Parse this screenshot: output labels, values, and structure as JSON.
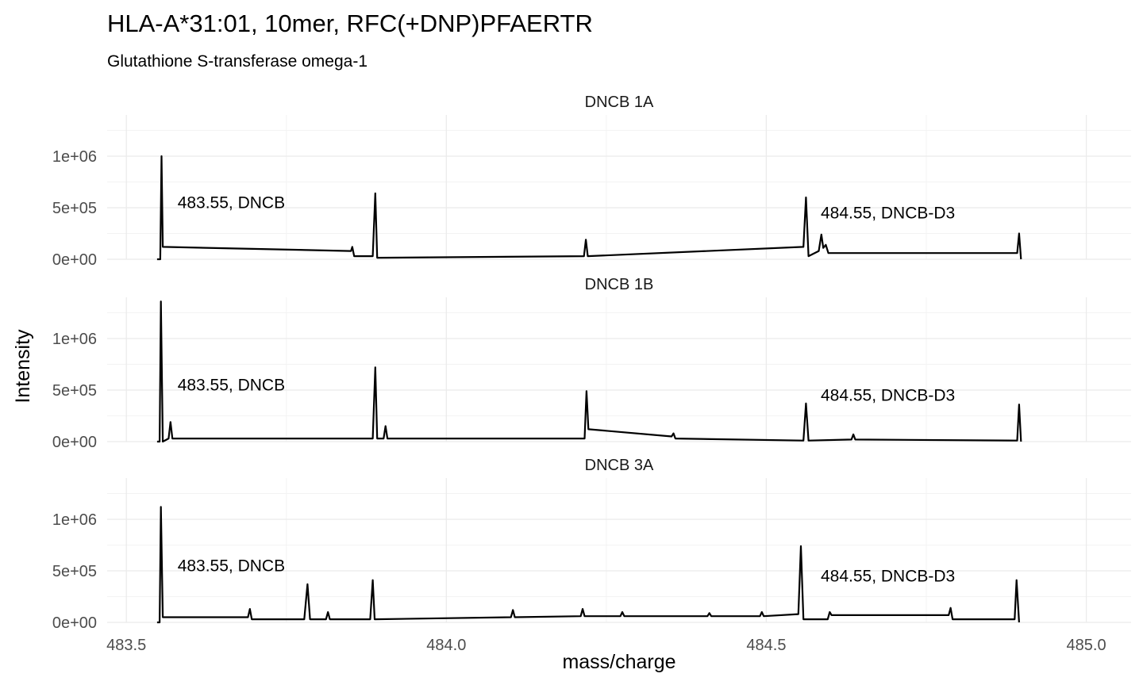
{
  "chart_data": {
    "type": "line",
    "title": "HLA-A*31:01, 10mer, RFC(+DNP)PFAERTR",
    "subtitle": "Glutathione S-transferase omega-1",
    "xlabel": "mass/charge",
    "ylabel": "Intensity",
    "xlim": [
      483.47,
      485.07
    ],
    "ylim": [
      0,
      1400000
    ],
    "x_ticks": [
      483.5,
      484.0,
      484.5,
      485.0
    ],
    "x_tick_labels": [
      "483.5",
      "484.0",
      "484.5",
      "485.0"
    ],
    "y_ticks": [
      0,
      500000,
      1000000
    ],
    "y_tick_labels": [
      "0e+00",
      "5e+05",
      "1e+06"
    ],
    "grid": true,
    "legend": "none",
    "panels": [
      {
        "name": "DNCB 1A",
        "points": [
          [
            483.548,
            0
          ],
          [
            483.553,
            0
          ],
          [
            483.555,
            1000000
          ],
          [
            483.557,
            120000
          ],
          [
            483.851,
            80000
          ],
          [
            483.853,
            120000
          ],
          [
            483.856,
            30000
          ],
          [
            483.885,
            30000
          ],
          [
            483.889,
            640000
          ],
          [
            483.892,
            15000
          ],
          [
            484.215,
            30000
          ],
          [
            484.218,
            190000
          ],
          [
            484.221,
            30000
          ],
          [
            484.558,
            120000
          ],
          [
            484.562,
            600000
          ],
          [
            484.566,
            30000
          ],
          [
            484.582,
            80000
          ],
          [
            484.586,
            240000
          ],
          [
            484.589,
            110000
          ],
          [
            484.593,
            140000
          ],
          [
            484.597,
            60000
          ],
          [
            484.892,
            60000
          ],
          [
            484.895,
            250000
          ],
          [
            484.898,
            0
          ]
        ],
        "annotations": [
          {
            "x": 483.58,
            "y": 550000,
            "text": "483.55, DNCB"
          },
          {
            "x": 484.585,
            "y": 450000,
            "text": "484.55, DNCB-D3"
          }
        ]
      },
      {
        "name": "DNCB 1B",
        "points": [
          [
            483.548,
            0
          ],
          [
            483.552,
            0
          ],
          [
            483.554,
            1360000
          ],
          [
            483.557,
            0
          ],
          [
            483.566,
            30000
          ],
          [
            483.569,
            190000
          ],
          [
            483.572,
            30000
          ],
          [
            483.885,
            30000
          ],
          [
            483.889,
            720000
          ],
          [
            483.892,
            30000
          ],
          [
            483.902,
            30000
          ],
          [
            483.905,
            150000
          ],
          [
            483.908,
            30000
          ],
          [
            484.216,
            30000
          ],
          [
            484.219,
            490000
          ],
          [
            484.222,
            120000
          ],
          [
            484.352,
            50000
          ],
          [
            484.355,
            80000
          ],
          [
            484.358,
            30000
          ],
          [
            484.558,
            10000
          ],
          [
            484.562,
            370000
          ],
          [
            484.566,
            10000
          ],
          [
            484.633,
            20000
          ],
          [
            484.636,
            70000
          ],
          [
            484.639,
            20000
          ],
          [
            484.892,
            10000
          ],
          [
            484.895,
            360000
          ],
          [
            484.898,
            0
          ]
        ],
        "annotations": [
          {
            "x": 483.58,
            "y": 550000,
            "text": "483.55, DNCB"
          },
          {
            "x": 484.585,
            "y": 450000,
            "text": "484.55, DNCB-D3"
          }
        ]
      },
      {
        "name": "DNCB 3A",
        "points": [
          [
            483.548,
            0
          ],
          [
            483.552,
            0
          ],
          [
            483.554,
            1120000
          ],
          [
            483.557,
            50000
          ],
          [
            483.69,
            50000
          ],
          [
            483.693,
            130000
          ],
          [
            483.696,
            30000
          ],
          [
            483.778,
            30000
          ],
          [
            483.783,
            370000
          ],
          [
            483.787,
            30000
          ],
          [
            483.812,
            30000
          ],
          [
            483.815,
            100000
          ],
          [
            483.818,
            30000
          ],
          [
            483.881,
            30000
          ],
          [
            483.885,
            410000
          ],
          [
            483.888,
            30000
          ],
          [
            484.101,
            50000
          ],
          [
            484.104,
            120000
          ],
          [
            484.107,
            50000
          ],
          [
            484.21,
            60000
          ],
          [
            484.213,
            130000
          ],
          [
            484.216,
            60000
          ],
          [
            484.272,
            60000
          ],
          [
            484.275,
            100000
          ],
          [
            484.278,
            60000
          ],
          [
            484.408,
            60000
          ],
          [
            484.411,
            90000
          ],
          [
            484.414,
            60000
          ],
          [
            484.49,
            60000
          ],
          [
            484.493,
            100000
          ],
          [
            484.496,
            60000
          ],
          [
            484.55,
            80000
          ],
          [
            484.554,
            740000
          ],
          [
            484.558,
            30000
          ],
          [
            484.596,
            30000
          ],
          [
            484.599,
            100000
          ],
          [
            484.602,
            70000
          ],
          [
            484.785,
            70000
          ],
          [
            484.788,
            140000
          ],
          [
            484.791,
            30000
          ],
          [
            484.888,
            30000
          ],
          [
            484.891,
            410000
          ],
          [
            484.895,
            0
          ]
        ],
        "annotations": [
          {
            "x": 483.58,
            "y": 550000,
            "text": "483.55, DNCB"
          },
          {
            "x": 484.585,
            "y": 450000,
            "text": "484.55, DNCB-D3"
          }
        ]
      }
    ]
  }
}
